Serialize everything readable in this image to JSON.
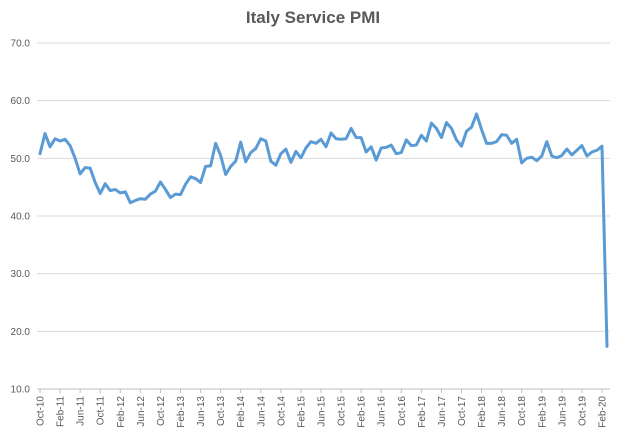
{
  "chart_data": {
    "type": "line",
    "title": "Italy Service PMI",
    "xlabel": "",
    "ylabel": "",
    "ylim": [
      10,
      70
    ],
    "yticks": [
      "10.0",
      "20.0",
      "30.0",
      "40.0",
      "50.0",
      "60.0",
      "70.0"
    ],
    "grid": true,
    "legend": "none",
    "color": "#5b9bd5",
    "x_tick_labels": [
      "Oct-10",
      "Feb-11",
      "Jun-11",
      "Oct-11",
      "Feb-12",
      "Jun-12",
      "Oct-12",
      "Feb-13",
      "Jun-13",
      "Oct-13",
      "Feb-14",
      "Jun-14",
      "Oct-14",
      "Feb-15",
      "Jun-15",
      "Oct-15",
      "Feb-16",
      "Jun-16",
      "Oct-16",
      "Feb-17",
      "Jun-17",
      "Oct-17",
      "Feb-18",
      "Jun-18",
      "Oct-18",
      "Feb-19",
      "Jun-19",
      "Oct-19",
      "Feb-20"
    ],
    "series": [
      {
        "name": "",
        "values": [
          50.8,
          54.3,
          52.0,
          53.4,
          53.0,
          53.3,
          52.2,
          50.0,
          47.3,
          48.4,
          48.3,
          45.8,
          43.9,
          45.6,
          44.4,
          44.6,
          44.0,
          44.2,
          42.3,
          42.7,
          43.0,
          42.9,
          43.8,
          44.3,
          45.9,
          44.6,
          43.2,
          43.8,
          43.7,
          45.5,
          46.8,
          46.5,
          45.8,
          48.6,
          48.7,
          52.6,
          50.5,
          47.2,
          48.6,
          49.5,
          52.8,
          49.4,
          51.0,
          51.7,
          53.4,
          53.0,
          49.5,
          48.8,
          50.8,
          51.6,
          49.3,
          51.2,
          50.1,
          51.8,
          52.9,
          52.6,
          53.3,
          52.0,
          54.4,
          53.4,
          53.3,
          53.4,
          55.2,
          53.6,
          53.6,
          51.1,
          52.0,
          49.7,
          51.8,
          51.9,
          52.3,
          50.8,
          51.0,
          53.2,
          52.2,
          52.3,
          54.0,
          53.0,
          56.1,
          55.2,
          53.6,
          56.2,
          55.2,
          53.2,
          52.1,
          54.7,
          55.4,
          57.7,
          55.0,
          52.6,
          52.6,
          52.9,
          54.1,
          54.0,
          52.6,
          53.3,
          49.2,
          50.0,
          50.2,
          49.6,
          50.4,
          52.9,
          50.4,
          50.1,
          50.5,
          51.6,
          50.6,
          51.4,
          52.2,
          50.4,
          51.1,
          51.4,
          52.1,
          17.4
        ]
      }
    ]
  }
}
